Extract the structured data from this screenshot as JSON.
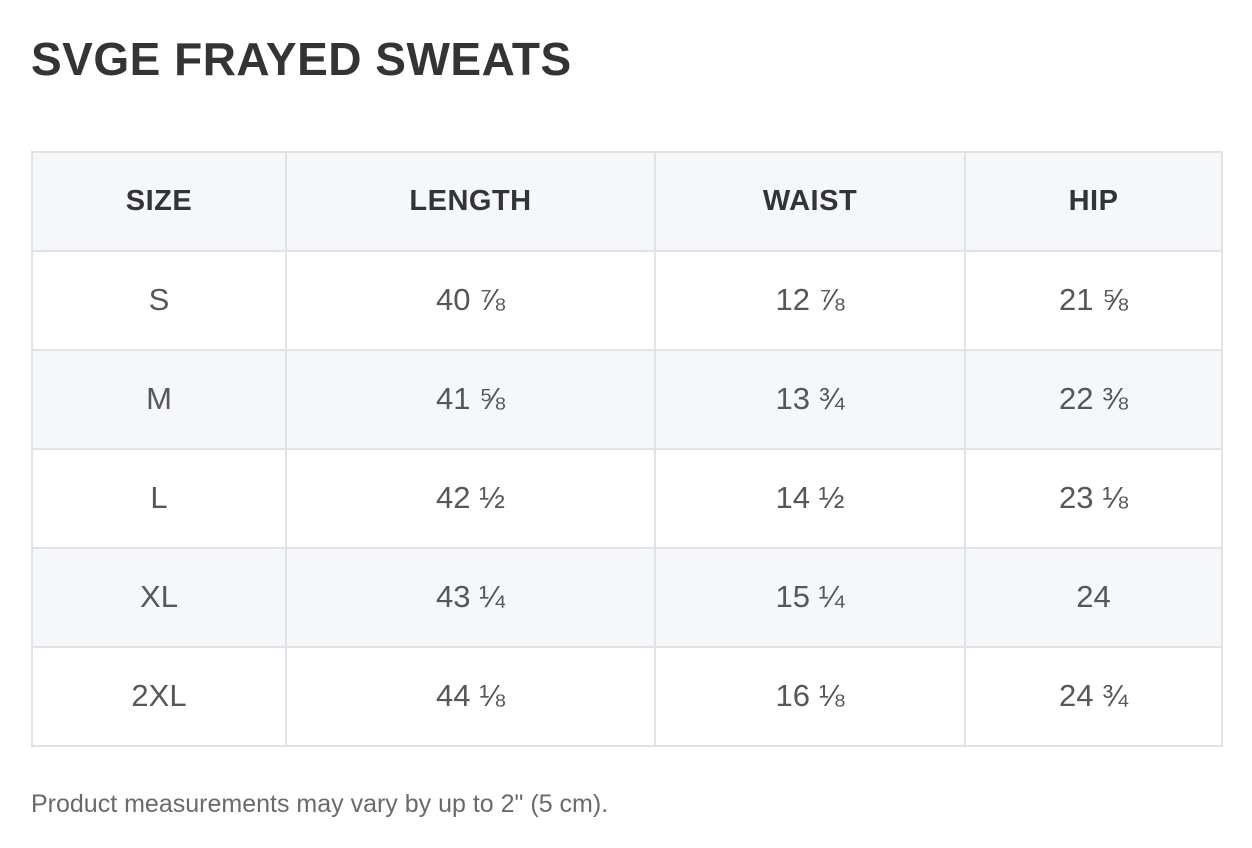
{
  "header": {
    "title": "SVGE FRAYED SWEATS"
  },
  "size_chart": {
    "columns": [
      "SIZE",
      "LENGTH",
      "WAIST",
      "HIP"
    ],
    "rows": [
      [
        "S",
        "40 ⅞",
        "12 ⅞",
        "21 ⅝"
      ],
      [
        "M",
        "41 ⅝",
        "13 ¾",
        "22 ⅜"
      ],
      [
        "L",
        "42 ½",
        "14 ½",
        "23 ⅛"
      ],
      [
        "XL",
        "43 ¼",
        "15 ¼",
        "24"
      ],
      [
        "2XL",
        "44 ⅛",
        "16 ⅛",
        "24 ¾"
      ]
    ]
  },
  "footer": {
    "note": "Product measurements may vary by up to 2\" (5 cm)."
  },
  "colors": {
    "title_text": "#333436",
    "cell_text": "#55575a",
    "note_text": "#696a6c",
    "border": "#dfe2e6",
    "header_bg": "#f6f7f9",
    "stripe_bg": "#f6f7f9",
    "page_bg": "#ffffff"
  }
}
